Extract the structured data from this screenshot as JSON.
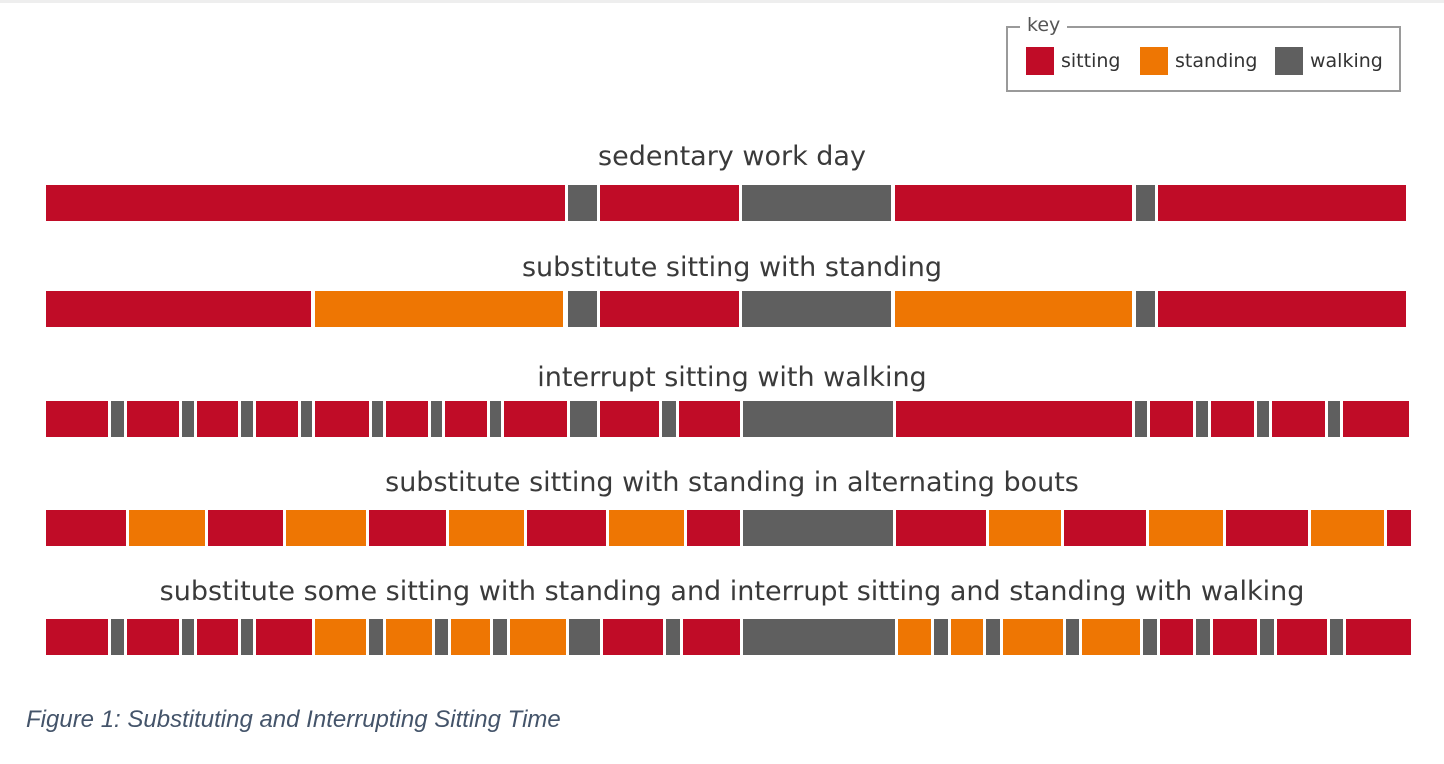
{
  "colors": {
    "sitting": "#c00c27",
    "standing": "#ee7603",
    "walking": "#5f5f5f"
  },
  "legend": {
    "title": "key",
    "items": [
      {
        "key": "sitting",
        "label": "sitting"
      },
      {
        "key": "standing",
        "label": "standing"
      },
      {
        "key": "walking",
        "label": "walking"
      }
    ]
  },
  "rows": [
    {
      "title": "sedentary work day",
      "segments": [
        [
          "sitting",
          0,
          519
        ],
        [
          "walking",
          522,
          551
        ],
        [
          "sitting",
          554,
          693
        ],
        [
          "walking",
          696,
          845
        ],
        [
          "sitting",
          849,
          1086
        ],
        [
          "walking",
          1090,
          1109
        ],
        [
          "sitting",
          1112,
          1360
        ]
      ]
    },
    {
      "title": "substitute sitting with standing",
      "segments": [
        [
          "sitting",
          0,
          265
        ],
        [
          "standing",
          269,
          517
        ],
        [
          "walking",
          522,
          551
        ],
        [
          "sitting",
          554,
          693
        ],
        [
          "walking",
          696,
          845
        ],
        [
          "standing",
          849,
          1086
        ],
        [
          "walking",
          1090,
          1109
        ],
        [
          "sitting",
          1112,
          1360
        ]
      ]
    },
    {
      "title": "interrupt sitting with walking",
      "segments": [
        [
          "sitting",
          0,
          62
        ],
        [
          "walking",
          65,
          78
        ],
        [
          "sitting",
          81,
          133
        ],
        [
          "walking",
          136,
          148
        ],
        [
          "sitting",
          151,
          192
        ],
        [
          "walking",
          195,
          207
        ],
        [
          "sitting",
          210,
          252
        ],
        [
          "walking",
          255,
          266
        ],
        [
          "sitting",
          269,
          323
        ],
        [
          "walking",
          326,
          337
        ],
        [
          "sitting",
          340,
          382
        ],
        [
          "walking",
          385,
          396
        ],
        [
          "sitting",
          399,
          441
        ],
        [
          "walking",
          444,
          455
        ],
        [
          "sitting",
          458,
          521
        ],
        [
          "walking",
          524,
          551
        ],
        [
          "sitting",
          554,
          613
        ],
        [
          "walking",
          616,
          630
        ],
        [
          "sitting",
          633,
          694
        ],
        [
          "walking",
          697,
          847
        ],
        [
          "sitting",
          850,
          1086
        ],
        [
          "walking",
          1089,
          1101
        ],
        [
          "sitting",
          1104,
          1147
        ],
        [
          "walking",
          1150,
          1162
        ],
        [
          "sitting",
          1165,
          1208
        ],
        [
          "walking",
          1211,
          1223
        ],
        [
          "sitting",
          1226,
          1279
        ],
        [
          "walking",
          1282,
          1294
        ],
        [
          "sitting",
          1297,
          1363
        ]
      ]
    },
    {
      "title": "substitute sitting with standing in alternating bouts",
      "segments": [
        [
          "sitting",
          0,
          80
        ],
        [
          "standing",
          83,
          159
        ],
        [
          "sitting",
          162,
          237
        ],
        [
          "standing",
          240,
          320
        ],
        [
          "sitting",
          323,
          400
        ],
        [
          "standing",
          403,
          478
        ],
        [
          "sitting",
          481,
          560
        ],
        [
          "standing",
          563,
          638
        ],
        [
          "sitting",
          641,
          694
        ],
        [
          "walking",
          697,
          847
        ],
        [
          "sitting",
          850,
          940
        ],
        [
          "standing",
          943,
          1015
        ],
        [
          "sitting",
          1018,
          1100
        ],
        [
          "standing",
          1103,
          1177
        ],
        [
          "sitting",
          1180,
          1262
        ],
        [
          "standing",
          1265,
          1338
        ],
        [
          "sitting",
          1341,
          1365
        ]
      ]
    },
    {
      "title": "substitute some sitting with standing and interrupt sitting and standing with walking",
      "segments": [
        [
          "sitting",
          0,
          62
        ],
        [
          "walking",
          65,
          78
        ],
        [
          "sitting",
          81,
          133
        ],
        [
          "walking",
          136,
          148
        ],
        [
          "sitting",
          151,
          192
        ],
        [
          "walking",
          195,
          207
        ],
        [
          "sitting",
          210,
          266
        ],
        [
          "standing",
          269,
          320
        ],
        [
          "walking",
          323,
          337
        ],
        [
          "standing",
          340,
          386
        ],
        [
          "walking",
          389,
          402
        ],
        [
          "standing",
          405,
          444
        ],
        [
          "walking",
          447,
          461
        ],
        [
          "standing",
          464,
          520
        ],
        [
          "walking",
          523,
          554
        ],
        [
          "sitting",
          557,
          617
        ],
        [
          "walking",
          620,
          634
        ],
        [
          "sitting",
          637,
          694
        ],
        [
          "walking",
          697,
          849
        ],
        [
          "standing",
          852,
          885
        ],
        [
          "walking",
          888,
          902
        ],
        [
          "standing",
          905,
          937
        ],
        [
          "walking",
          940,
          954
        ],
        [
          "standing",
          957,
          1017
        ],
        [
          "walking",
          1020,
          1033
        ],
        [
          "standing",
          1036,
          1094
        ],
        [
          "walking",
          1097,
          1111
        ],
        [
          "sitting",
          1114,
          1147
        ],
        [
          "walking",
          1150,
          1164
        ],
        [
          "sitting",
          1167,
          1211
        ],
        [
          "walking",
          1214,
          1228
        ],
        [
          "sitting",
          1231,
          1281
        ],
        [
          "walking",
          1284,
          1297
        ],
        [
          "sitting",
          1300,
          1365
        ]
      ]
    }
  ],
  "caption": "Figure 1: Substituting and Interrupting Sitting Time"
}
